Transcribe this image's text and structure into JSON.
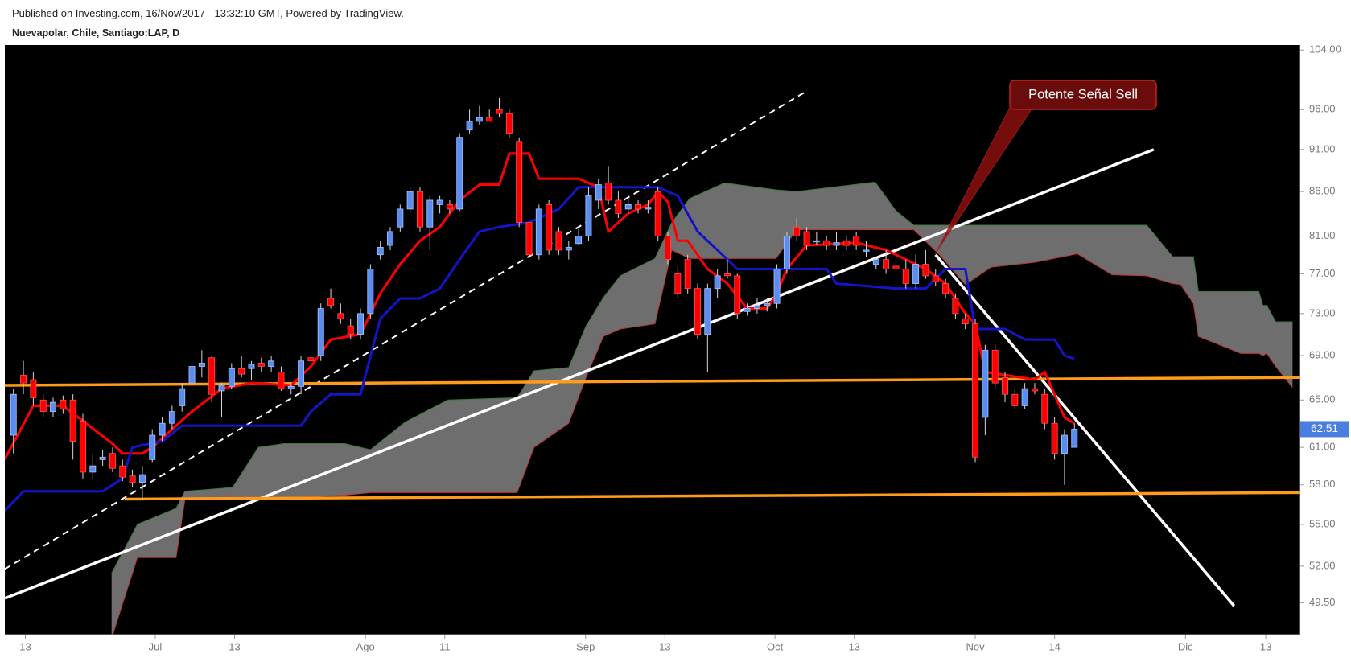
{
  "chart_data": {
    "type": "candlestick",
    "source": "Published on Investing.com, 16/Nov/2017 - 13:32:10 GMT, Powered by TradingView.",
    "title": "Nuevapolar, Chile, Santiago:LAP, D",
    "up_color": "#5b8def",
    "down_color": "#ff0000",
    "wick_color": "#d8d8d8",
    "open": [
      62.0,
      67.2,
      66.8,
      65.0,
      64.0,
      65.0,
      65.0,
      63.2,
      59.0,
      60.0,
      60.5,
      59.5,
      58.7,
      58.2,
      60.0,
      62.0,
      63.0,
      64.5,
      66.5,
      68.0,
      68.8,
      65.8,
      66.2,
      67.8,
      67.8,
      68.3,
      68.0,
      67.5,
      66.0,
      66.2,
      68.8,
      69.0,
      74.5,
      73.0,
      71.8,
      71.0,
      73.0,
      79.0,
      80.0,
      82.0,
      84.0,
      86.0,
      82.0,
      84.5,
      84.5,
      84.0,
      93.5,
      94.5,
      95.0,
      96.0,
      95.5,
      92.0,
      82.5,
      79.0,
      84.5,
      81.5,
      79.5,
      80.2,
      81.0,
      85.0,
      87.0,
      85.0,
      84.0,
      84.5,
      84.0,
      86.0,
      81.0,
      77.0,
      78.5,
      75.5,
      71.0,
      75.5,
      77.0,
      76.8,
      73.2,
      73.5,
      73.8,
      74.0,
      77.5,
      82.0,
      81.5,
      80.5,
      80.5,
      80.0,
      80.5,
      81.0,
      79.5,
      78.0,
      78.5,
      77.8,
      77.5,
      76.0,
      78.0,
      76.8,
      76.0,
      74.5,
      72.5,
      72.0,
      63.5,
      69.5,
      67.0,
      65.5,
      64.5,
      66.0,
      65.5,
      63.0,
      60.5,
      61.0
    ],
    "high": [
      66.0,
      68.5,
      67.5,
      65.5,
      65.2,
      65.4,
      65.5,
      63.8,
      60.5,
      60.8,
      61.0,
      60.0,
      59.2,
      59.5,
      62.5,
      63.5,
      64.5,
      66.5,
      68.5,
      69.5,
      69.0,
      66.5,
      68.3,
      69.0,
      68.5,
      68.8,
      69.0,
      68.0,
      66.5,
      69.0,
      69.0,
      74.0,
      75.5,
      74.0,
      72.5,
      73.5,
      78.0,
      80.5,
      82.0,
      84.5,
      86.5,
      86.5,
      85.5,
      85.5,
      85.0,
      93.0,
      96.0,
      96.5,
      96.0,
      97.5,
      96.0,
      92.5,
      83.5,
      84.5,
      85.0,
      82.0,
      80.5,
      81.8,
      86.5,
      87.5,
      89.0,
      86.0,
      85.5,
      85.0,
      85.0,
      86.5,
      81.5,
      77.8,
      79.0,
      76.0,
      76.0,
      77.5,
      78.5,
      77.0,
      74.0,
      74.5,
      74.5,
      78.0,
      81.5,
      83.0,
      82.0,
      81.5,
      81.0,
      81.5,
      81.0,
      81.5,
      80.5,
      78.8,
      79.5,
      78.5,
      78.5,
      79.0,
      79.5,
      77.5,
      76.5,
      75.0,
      73.0,
      72.5,
      70.0,
      70.0,
      67.5,
      66.0,
      66.5,
      66.5,
      66.0,
      63.5,
      62.5,
      63.0
    ],
    "low": [
      60.5,
      65.5,
      64.5,
      63.5,
      63.5,
      63.8,
      60.0,
      58.5,
      58.5,
      59.5,
      59.0,
      58.3,
      57.8,
      56.8,
      59.8,
      61.5,
      62.5,
      64.0,
      66.0,
      67.0,
      64.8,
      63.5,
      66.0,
      67.0,
      66.8,
      67.5,
      67.5,
      65.8,
      65.5,
      65.5,
      68.3,
      68.5,
      73.5,
      72.0,
      70.5,
      70.5,
      72.5,
      78.5,
      79.5,
      81.5,
      83.5,
      81.5,
      79.5,
      83.5,
      83.5,
      83.8,
      93.0,
      94.0,
      94.5,
      95.0,
      92.5,
      82.0,
      78.0,
      78.5,
      79.0,
      79.0,
      78.5,
      80.0,
      80.5,
      84.0,
      84.5,
      83.0,
      83.5,
      83.5,
      83.5,
      80.5,
      78.0,
      74.5,
      75.0,
      70.5,
      67.5,
      74.5,
      76.5,
      72.5,
      72.8,
      73.0,
      73.2,
      73.5,
      77.0,
      80.5,
      79.5,
      80.0,
      79.5,
      79.5,
      79.5,
      79.5,
      78.8,
      77.5,
      77.0,
      77.0,
      75.5,
      75.5,
      76.5,
      75.8,
      74.5,
      72.5,
      71.5,
      59.8,
      62.0,
      66.0,
      64.8,
      64.2,
      64.2,
      65.5,
      62.5,
      60.0,
      58.0,
      61.0
    ],
    "close": [
      65.5,
      66.5,
      65.2,
      64.0,
      64.8,
      64.2,
      61.5,
      59.0,
      59.5,
      60.2,
      59.3,
      58.6,
      58.2,
      58.8,
      62.0,
      63.0,
      64.0,
      66.0,
      68.0,
      68.3,
      65.5,
      66.3,
      67.8,
      67.3,
      68.2,
      68.0,
      68.5,
      66.0,
      66.2,
      68.5,
      68.5,
      73.5,
      73.8,
      72.5,
      71.0,
      73.0,
      77.5,
      79.8,
      81.5,
      84.0,
      86.0,
      82.0,
      85.0,
      85.0,
      84.0,
      92.5,
      94.5,
      95.0,
      94.5,
      95.5,
      93.0,
      82.5,
      79.0,
      84.0,
      79.5,
      79.5,
      79.8,
      81.0,
      85.5,
      86.8,
      85.0,
      83.5,
      84.5,
      84.0,
      84.2,
      81.0,
      78.5,
      75.0,
      75.5,
      71.0,
      75.5,
      76.8,
      76.8,
      73.0,
      73.5,
      73.8,
      74.0,
      77.5,
      81.0,
      81.0,
      80.0,
      80.5,
      80.0,
      80.3,
      80.0,
      80.0,
      79.5,
      78.5,
      77.5,
      77.5,
      76.0,
      78.0,
      76.8,
      76.2,
      75.0,
      73.0,
      72.0,
      60.2,
      69.5,
      66.5,
      65.5,
      64.5,
      66.0,
      65.8,
      63.0,
      60.5,
      62.0,
      62.51
    ],
    "lines": [
      {
        "color": "#ff0000",
        "x": [
          -0.9,
          2,
          5,
          7,
          10,
          11,
          13,
          14,
          16,
          18,
          21,
          24,
          28,
          30,
          32,
          35,
          37,
          39,
          41,
          43,
          45,
          47,
          49,
          50,
          52,
          53,
          57,
          59,
          60,
          62,
          64,
          65,
          66,
          67,
          68,
          70,
          72,
          74,
          76,
          77,
          78,
          80,
          85,
          88,
          90,
          92,
          94,
          96,
          97,
          98,
          103,
          104,
          106,
          107
        ],
        "values": [
          60,
          64.5,
          64.5,
          63.2,
          61.3,
          60.5,
          60.5,
          61,
          62.5,
          64,
          66,
          66.5,
          66.3,
          68,
          70.5,
          71,
          75,
          78,
          80.5,
          82,
          85,
          86.8,
          86.8,
          90.5,
          90.5,
          87.5,
          87.5,
          86.5,
          81.5,
          83.5,
          84.5,
          86,
          84.8,
          80.5,
          80.5,
          77.5,
          76,
          73.5,
          73.5,
          75,
          77.5,
          80,
          80.3,
          79.5,
          78.5,
          77.5,
          76,
          73,
          72,
          67.5,
          66.8,
          67.5,
          63.5,
          63
        ]
      },
      {
        "color": "#1414c8",
        "x": [
          -0.9,
          1,
          9,
          11,
          12,
          15,
          17,
          29,
          30,
          32,
          35,
          37,
          39,
          41,
          43,
          45,
          47,
          49,
          52,
          55,
          57,
          65,
          67,
          69,
          71,
          73,
          77,
          82,
          83,
          89,
          92,
          94,
          96,
          97,
          100,
          102,
          105,
          106,
          107
        ],
        "values": [
          56,
          57.5,
          57.5,
          58.5,
          61,
          61.5,
          62.8,
          62.8,
          64,
          65.5,
          65.5,
          72.5,
          74.5,
          74.5,
          75.5,
          78.5,
          81.5,
          82,
          82.5,
          84,
          86.5,
          86.5,
          85.5,
          81.5,
          79.5,
          77.5,
          77.5,
          77.5,
          76,
          75.5,
          75.5,
          77.5,
          77.5,
          71.5,
          71.5,
          70.5,
          70.5,
          69,
          68.7
        ]
      }
    ],
    "cloud": {
      "fill": "#6e6e6e",
      "top_color": "#3a7a3a",
      "bottom_color": "#c03030",
      "x": [
        9.9,
        12.5,
        16.4,
        17.3,
        22.1,
        24.7,
        27.3,
        33.4,
        36.0,
        39.5,
        43.8,
        50.8,
        52.5,
        56.0,
        57.7,
        59.5,
        61.2,
        64.7,
        66.4,
        68.2,
        71.7,
        76.9,
        79.0,
        86.9,
        89.0,
        90.8,
        93.4,
        96.0,
        98.6,
        103.0,
        107.3,
        110.8,
        114.3,
        116.9,
        117.7,
        119.0,
        119.5,
        123.8,
        125.6,
        126.0,
        126.4,
        127.3,
        129.0
      ],
      "top": [
        51.5,
        55.0,
        56.2,
        57.5,
        57.8,
        61.0,
        61.3,
        61.3,
        60.8,
        63.1,
        65.0,
        65.2,
        67.6,
        67.9,
        71.7,
        74.6,
        76.8,
        78.6,
        82.5,
        85.2,
        87.0,
        86.2,
        86.0,
        87.1,
        83.8,
        82.2,
        82.2,
        82.2,
        82.2,
        82.2,
        82.2,
        82.2,
        82.2,
        78.8,
        78.8,
        78.8,
        75.2,
        75.2,
        75.2,
        73.8,
        73.8,
        72.2,
        72.2
      ],
      "bottom": [
        47.2,
        52.6,
        52.6,
        56.9,
        56.9,
        56.9,
        57.0,
        57.2,
        57.4,
        57.4,
        57.4,
        57.4,
        61.0,
        63.0,
        66.9,
        70.8,
        71.5,
        72.0,
        79.5,
        78.6,
        78.6,
        78.6,
        81.7,
        81.7,
        81.7,
        81.7,
        79.0,
        75.9,
        77.7,
        78.2,
        79.1,
        76.9,
        76.8,
        76.0,
        75.9,
        74.0,
        70.8,
        69.2,
        69.2,
        69.0,
        69.2,
        68.0,
        66.1
      ]
    },
    "trendlines": [
      {
        "color": "#ffffff",
        "dash": false,
        "x": [
          -0.87,
          115.0
        ],
        "values": [
          49.8,
          91.0
        ]
      },
      {
        "color": "#ffffff",
        "dash": false,
        "x": [
          93.0,
          123.1
        ],
        "values": [
          79.0,
          49.3
        ]
      },
      {
        "color": "#ffffff",
        "dash": true,
        "x": [
          -0.87,
          79.7
        ],
        "values": [
          51.8,
          98.2
        ]
      },
      {
        "color": "#ff9a1a",
        "dash": false,
        "x": [
          -0.87,
          129.7
        ],
        "values": [
          66.3,
          67.0
        ]
      },
      {
        "color": "#ff9a1a",
        "dash": false,
        "x": [
          11.2,
          129.7
        ],
        "values": [
          56.9,
          57.4
        ]
      }
    ],
    "annotation": "Potente Señal Sell",
    "log_scale": true,
    "ylim": [
      47.43,
      104.7
    ],
    "yticks": [
      {
        "value": 49.5,
        "label": "49.50"
      },
      {
        "value": 52,
        "label": "52.00"
      },
      {
        "value": 55,
        "label": "55.00"
      },
      {
        "value": 58,
        "label": "58.00"
      },
      {
        "value": 61,
        "label": "61.00"
      },
      {
        "value": 65,
        "label": "65.00"
      },
      {
        "value": 69,
        "label": "69.00"
      },
      {
        "value": 73,
        "label": "73.00"
      },
      {
        "value": 77,
        "label": "77.00"
      },
      {
        "value": 81,
        "label": "81.00"
      },
      {
        "value": 86,
        "label": "86.00"
      },
      {
        "value": 91,
        "label": "91.00"
      },
      {
        "value": 96,
        "label": "96.00"
      },
      {
        "value": 104,
        "label": "104.00"
      }
    ],
    "xlim": [
      -0.87,
      129.7
    ],
    "xticks": [
      {
        "value": 1.2,
        "label": "13"
      },
      {
        "value": 14.3,
        "label": "Jul"
      },
      {
        "value": 22.3,
        "label": "13"
      },
      {
        "value": 35.5,
        "label": "Ago"
      },
      {
        "value": 43.5,
        "label": "11"
      },
      {
        "value": 57.7,
        "label": "Sep"
      },
      {
        "value": 65.7,
        "label": "13"
      },
      {
        "value": 76.8,
        "label": "Oct"
      },
      {
        "value": 84.8,
        "label": "13"
      },
      {
        "value": 97.0,
        "label": "Nov"
      },
      {
        "value": 105.0,
        "label": "14"
      },
      {
        "value": 118.2,
        "label": "Dic"
      },
      {
        "value": 126.3,
        "label": "13"
      }
    ]
  }
}
